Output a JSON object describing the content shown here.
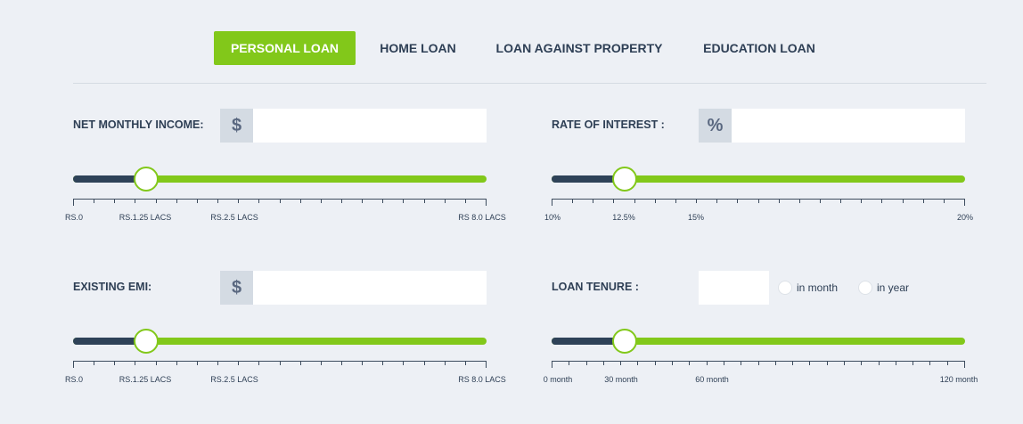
{
  "tabs": [
    {
      "label": "PERSONAL LOAN",
      "active": true
    },
    {
      "label": "HOME LOAN",
      "active": false
    },
    {
      "label": "LOAN AGAINST PROPERTY",
      "active": false
    },
    {
      "label": "EDUCATION LOAN",
      "active": false
    }
  ],
  "net_income": {
    "label": "NET MONTHLY INCOME:",
    "addon": "$",
    "value": "",
    "slider_level": 0.177,
    "tick_labels": [
      "RS.0",
      "RS.1.25 LACS",
      "RS.2.5 LACS",
      "RS 8.0 LACS"
    ]
  },
  "rate_of_interest": {
    "label": "RATE OF INTEREST :",
    "addon": "%",
    "value": "",
    "slider_level": 0.177,
    "tick_labels": [
      "10%",
      "12.5%",
      "15%",
      "20%"
    ]
  },
  "existing_emi": {
    "label": "EXISTING EMI:",
    "addon": "$",
    "value": "",
    "slider_level": 0.177,
    "tick_labels": [
      "RS.0",
      "RS.1.25 LACS",
      "RS.2.5 LACS",
      "RS 8.0 LACS"
    ]
  },
  "loan_tenure": {
    "label": "LOAN TENURE :",
    "value": "",
    "radio_month": "in month",
    "radio_year": "in year",
    "slider_level": 0.177,
    "tick_labels": [
      "0 month",
      "30 month",
      "60 month",
      "120 month"
    ]
  },
  "colors": {
    "accent": "#82c81a",
    "dark": "#2e4258",
    "background": "#edf0f5"
  }
}
